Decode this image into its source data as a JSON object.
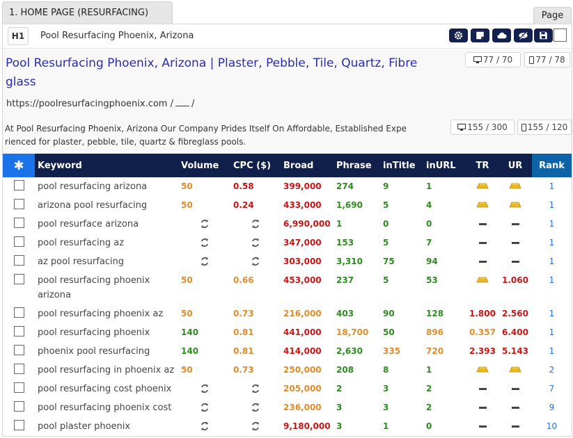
{
  "section_tab": "1. HOME PAGE (RESURFACING)",
  "page_button": "Page",
  "h1": {
    "badge": "H1",
    "text": "Pool Resurfacing Phoenix, Arizona"
  },
  "toolbar": [
    "gear-icon",
    "note-icon",
    "cloud-icon",
    "eye-slash-icon",
    "save-icon"
  ],
  "meta": {
    "title": "Pool Resurfacing Phoenix, Arizona | Plaster, Pebble, Tile, Quartz, Fibre glass",
    "url": "https://poolresurfacingphoenix.com",
    "url_sep1": "/",
    "url_sep2": "/",
    "description": "At Pool Resurfacing Phoenix, Arizona Our Company Prides Itself On Affordable, Established Experienced for plaster, pebble, tile, quartz & fibreglass pools.",
    "title_desktop": "77 / 70",
    "title_mobile": "77 / 78",
    "desc_desktop": "155 / 300",
    "desc_mobile": "155 / 120"
  },
  "table": {
    "headers": {
      "star": "✱",
      "keyword": "Keyword",
      "volume": "Volume",
      "cpc": "CPC ($)",
      "broad": "Broad",
      "phrase": "Phrase",
      "intitle": "inTitle",
      "inurl": "inURL",
      "tr": "TR",
      "ur": "UR",
      "rank": "Rank"
    },
    "rows": [
      {
        "keyword": "pool resurfacing arizona",
        "volume": "50",
        "cpc": "0.58",
        "broad": "399,000",
        "phrase": "274",
        "intitle": "9",
        "inurl": "1",
        "tr": "gold",
        "ur": "gold",
        "rank": "1"
      },
      {
        "keyword": "arizona pool resurfacing",
        "volume": "50",
        "cpc": "0.24",
        "broad": "433,000",
        "phrase": "1,690",
        "intitle": "5",
        "inurl": "4",
        "tr": "gold",
        "ur": "gold",
        "rank": "1"
      },
      {
        "keyword": "pool resurface arizona",
        "volume": "refresh",
        "cpc": "refresh",
        "broad": "6,990,000",
        "phrase": "1",
        "intitle": "0",
        "inurl": "0",
        "tr": "dash",
        "ur": "dash",
        "rank": "1"
      },
      {
        "keyword": "pool resurfacing az",
        "volume": "refresh",
        "cpc": "refresh",
        "broad": "347,000",
        "phrase": "153",
        "intitle": "5",
        "inurl": "7",
        "tr": "dash",
        "ur": "dash",
        "rank": "1"
      },
      {
        "keyword": "az pool resurfacing",
        "volume": "refresh",
        "cpc": "refresh",
        "broad": "303,000",
        "phrase": "3,310",
        "intitle": "75",
        "inurl": "94",
        "tr": "dash",
        "ur": "dash",
        "rank": "1"
      },
      {
        "keyword": "pool resurfacing phoenix arizona",
        "volume": "50",
        "cpc": "0.66",
        "broad": "453,000",
        "phrase": "237",
        "intitle": "5",
        "inurl": "53",
        "tr": "gold",
        "ur": "1.060",
        "rank": "1",
        "tall": true
      },
      {
        "keyword": "pool resurfacing phoenix az",
        "volume": "50",
        "cpc": "0.73",
        "broad": "216,000",
        "phrase": "403",
        "intitle": "90",
        "inurl": "128",
        "tr": "1.800",
        "ur": "2.560",
        "rank": "1"
      },
      {
        "keyword": "pool resurfacing phoenix",
        "volume": "140",
        "cpc": "0.81",
        "broad": "441,000",
        "phrase": "18,700",
        "intitle": "50",
        "inurl": "896",
        "tr": "0.357",
        "ur": "6.400",
        "rank": "1"
      },
      {
        "keyword": "phoenix pool resurfacing",
        "volume": "140",
        "cpc": "0.81",
        "broad": "414,000",
        "phrase": "2,630",
        "intitle": "335",
        "inurl": "720",
        "tr": "2.393",
        "ur": "5.143",
        "rank": "1"
      },
      {
        "keyword": "pool resurfacing in phoenix az",
        "volume": "50",
        "cpc": "0.73",
        "broad": "250,000",
        "phrase": "208",
        "intitle": "8",
        "inurl": "1",
        "tr": "gold",
        "ur": "gold",
        "rank": "2"
      },
      {
        "keyword": "pool resurfacing cost phoenix",
        "volume": "refresh",
        "cpc": "refresh",
        "broad": "205,000",
        "phrase": "2",
        "intitle": "3",
        "inurl": "2",
        "tr": "dash",
        "ur": "dash",
        "rank": "7"
      },
      {
        "keyword": "pool resurfacing phoenix cost",
        "volume": "refresh",
        "cpc": "refresh",
        "broad": "236,000",
        "phrase": "3",
        "intitle": "3",
        "inurl": "2",
        "tr": "dash",
        "ur": "dash",
        "rank": "9"
      },
      {
        "keyword": "pool plaster phoenix",
        "volume": "refresh",
        "cpc": "refresh",
        "broad": "9,180,000",
        "phrase": "3",
        "intitle": "1",
        "inurl": "0",
        "tr": "dash",
        "ur": "dash",
        "rank": "10"
      }
    ]
  },
  "colors": {
    "orange": "#e08c2a",
    "red": "#c81414",
    "green": "#2e8b1f",
    "header_bg": "#11204b",
    "star_bg": "#1a73e8",
    "rank_bg": "#0d63a6",
    "rank_text": "#2a6fd1"
  }
}
